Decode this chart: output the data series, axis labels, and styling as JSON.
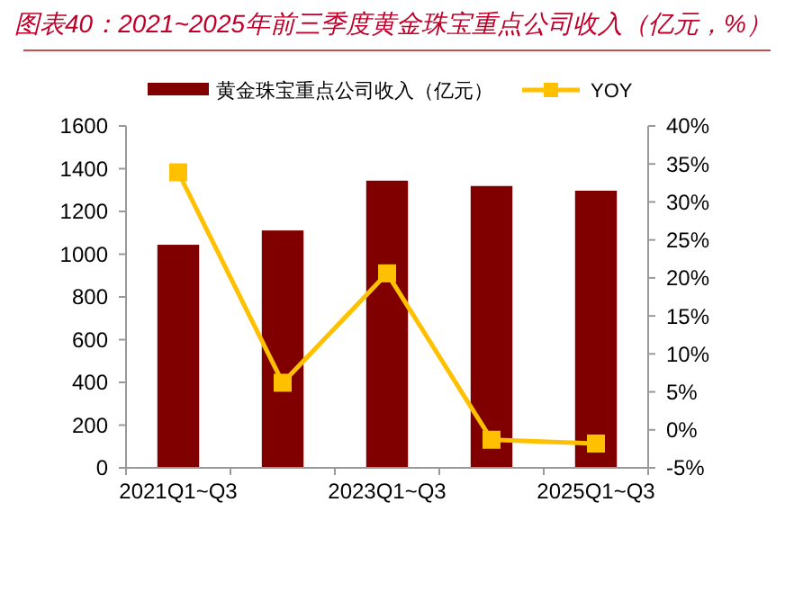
{
  "chart_data": {
    "type": "bar",
    "title": "图表40：2021~2025年前三季度黄金珠宝重点公司收入（亿元，%）",
    "categories": [
      "2021Q1~Q3",
      null,
      "2023Q1~Q3",
      null,
      "2025Q1~Q3"
    ],
    "series": [
      {
        "name": "黄金珠宝重点公司收入（亿元）",
        "color": "#800000",
        "values": [
          1044,
          1111,
          1344,
          1319,
          1297
        ]
      },
      {
        "name": "YOY",
        "type": "line",
        "axis": "y2",
        "color": "#ffc000",
        "marker": "square",
        "values": [
          33.9,
          6.2,
          20.6,
          -1.3,
          -1.8
        ]
      }
    ],
    "ylim": [
      0,
      1600
    ],
    "yticks": [
      0,
      200,
      400,
      600,
      800,
      1000,
      1200,
      1400,
      1600
    ],
    "y2lim": [
      -5,
      40
    ],
    "y2ticks": [
      {
        "value": -5,
        "label": "-5%"
      },
      {
        "value": 0,
        "label": "0%"
      },
      {
        "value": 5,
        "label": "5%"
      },
      {
        "value": 10,
        "label": "10%"
      },
      {
        "value": 15,
        "label": "15%"
      },
      {
        "value": 20,
        "label": "20%"
      },
      {
        "value": 25,
        "label": "25%"
      },
      {
        "value": 30,
        "label": "30%"
      },
      {
        "value": 35,
        "label": "35%"
      },
      {
        "value": 40,
        "label": "40%"
      }
    ],
    "grid": false,
    "legend": "top"
  }
}
